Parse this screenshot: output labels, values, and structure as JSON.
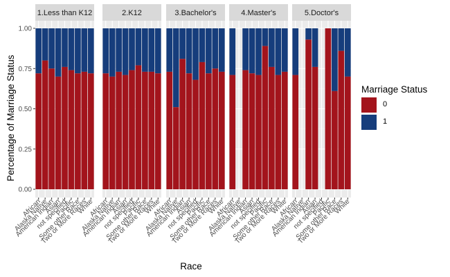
{
  "chart_data": {
    "type": "bar",
    "stacked": true,
    "normalized": true,
    "xlabel": "Race",
    "ylabel": "Percentage of Marriage Status",
    "ylim": [
      0,
      1
    ],
    "yticks": [
      "0.00",
      "0.25",
      "0.50",
      "0.75",
      "1.00"
    ],
    "categories": [
      "African",
      "Alaska Native",
      "American Indian",
      "Asian",
      "not specified",
      "Pacific",
      "Some other Race",
      "Two or More Races",
      "White"
    ],
    "legend": {
      "title": "Marriage Status",
      "placement": "right",
      "entries": [
        {
          "label": "0",
          "color": "#a3141c"
        },
        {
          "label": "1",
          "color": "#163d7c"
        }
      ]
    },
    "grid": true,
    "panels": [
      {
        "label": "1.Less than K12",
        "share_0": [
          0.72,
          0.8,
          0.75,
          0.7,
          0.76,
          0.74,
          0.72,
          0.73,
          0.72
        ]
      },
      {
        "label": "2.K12",
        "share_0": [
          0.72,
          0.7,
          0.73,
          0.71,
          0.74,
          0.77,
          0.73,
          0.73,
          0.72
        ]
      },
      {
        "label": "3.Bachelor's",
        "share_0": [
          0.73,
          0.51,
          0.81,
          0.72,
          0.68,
          0.79,
          0.72,
          0.75,
          0.73
        ]
      },
      {
        "label": "4.Master's",
        "share_0": [
          0.71,
          null,
          0.74,
          0.72,
          0.71,
          0.89,
          0.76,
          0.71,
          0.73
        ]
      },
      {
        "label": "5.Doctor's",
        "share_0": [
          0.71,
          null,
          0.93,
          0.76,
          null,
          1.0,
          0.61,
          0.86,
          0.7
        ]
      }
    ]
  }
}
